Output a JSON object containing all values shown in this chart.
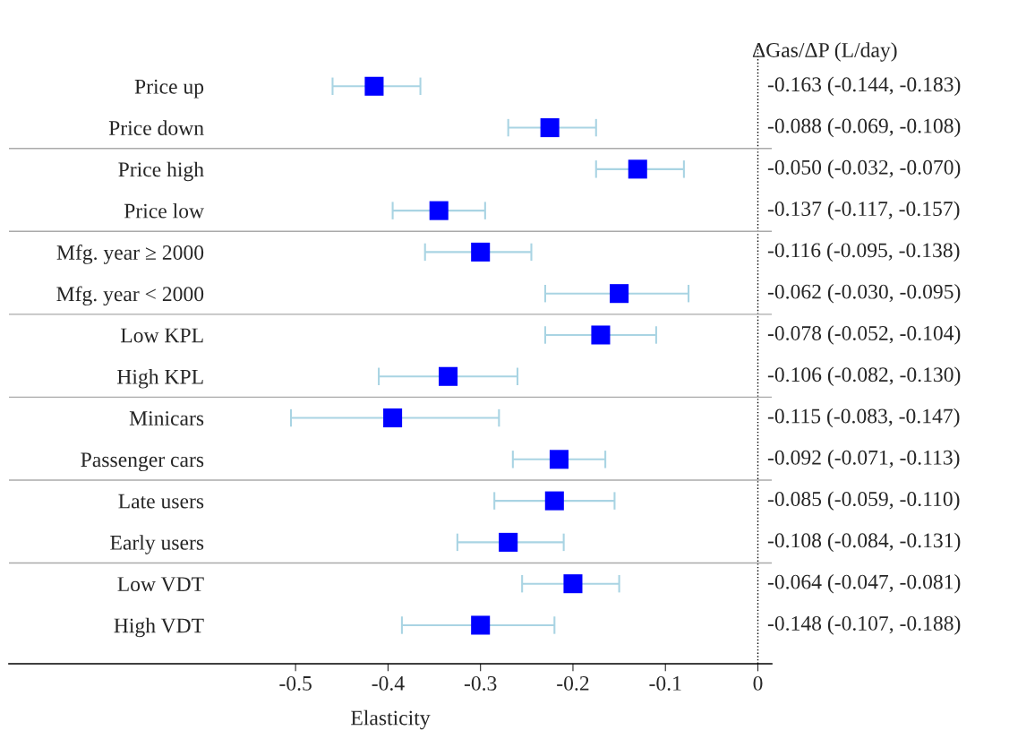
{
  "chart_data": {
    "type": "scatter",
    "orientation": "horizontal",
    "xlabel": "Elasticity",
    "categories": [
      "Price up",
      "Price down",
      "Price high",
      "Price low",
      "Mfg. year ≥ 2000",
      "Mfg. year < 2000",
      "Low KPL",
      "High KPL",
      "Minicars",
      "Passenger cars",
      "Late users",
      "Early users",
      "Low VDT",
      "High VDT"
    ],
    "series": [
      {
        "color": "#0000ff",
        "values": [
          -0.415,
          -0.225,
          -0.13,
          -0.345,
          -0.3,
          -0.15,
          -0.17,
          -0.335,
          -0.395,
          -0.215,
          -0.22,
          -0.27,
          -0.2,
          -0.3
        ],
        "errors": [
          [
            -0.46,
            -0.365
          ],
          [
            -0.27,
            -0.175
          ],
          [
            -0.175,
            -0.08
          ],
          [
            -0.395,
            -0.295
          ],
          [
            -0.36,
            -0.245
          ],
          [
            -0.23,
            -0.075
          ],
          [
            -0.23,
            -0.11
          ],
          [
            -0.41,
            -0.26
          ],
          [
            -0.505,
            -0.28
          ],
          [
            -0.265,
            -0.165
          ],
          [
            -0.285,
            -0.155
          ],
          [
            -0.325,
            -0.21
          ],
          [
            -0.255,
            -0.15
          ],
          [
            -0.385,
            -0.22
          ]
        ]
      }
    ],
    "marker": "square",
    "xlim": [
      -0.81,
      0.015
    ],
    "xticks": [
      -0.5,
      -0.4,
      -0.3,
      -0.2,
      -0.1,
      0
    ],
    "grid": false,
    "legend": false,
    "ref_lines": [
      {
        "axis": "x",
        "value": 0,
        "line_style": "dotted",
        "color": "#000000"
      }
    ],
    "annotations": [
      "ΔGas/ΔP (L/day)",
      "-0.163 (-0.144, -0.183)",
      "-0.088 (-0.069, -0.108)",
      "-0.050 (-0.032, -0.070)",
      "-0.137 (-0.117, -0.157)",
      "-0.116 (-0.095, -0.138)",
      "-0.062 (-0.030, -0.095)",
      "-0.078 (-0.052, -0.104)",
      "-0.106 (-0.082, -0.130)",
      "-0.115 (-0.083, -0.147)",
      "-0.092 (-0.071, -0.113)",
      "-0.085 (-0.059, -0.110)",
      "-0.108 (-0.084, -0.131)",
      "-0.064 (-0.047, -0.081)",
      "-0.148 (-0.107, -0.188)"
    ]
  }
}
